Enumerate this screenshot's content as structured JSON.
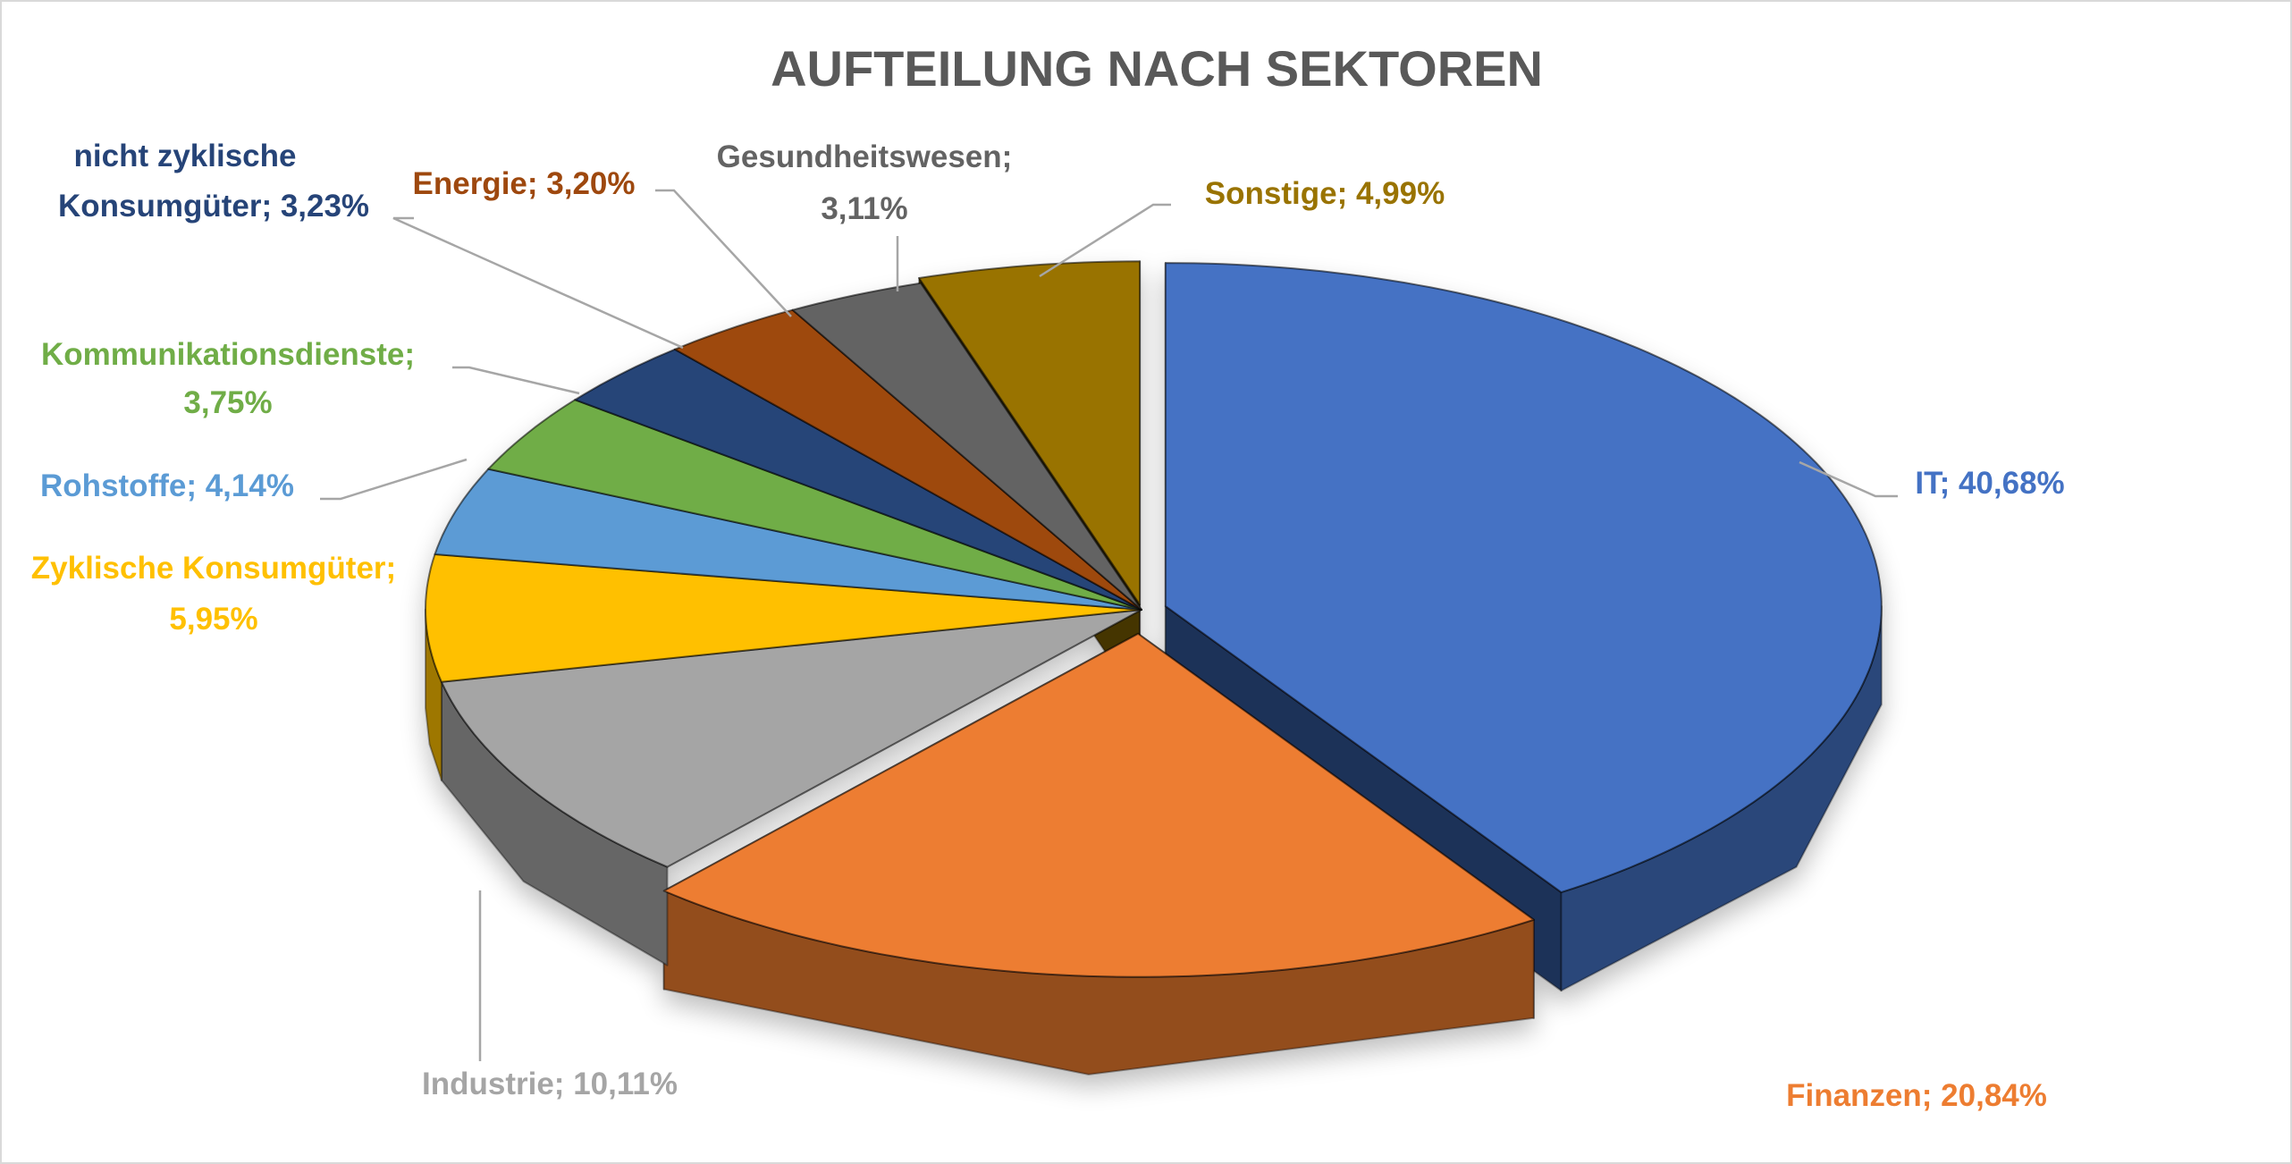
{
  "chart_data": {
    "type": "pie",
    "style": "3d-exploded",
    "title": "AUFTEILUNG NACH SEKTOREN",
    "unit": "%",
    "slices": [
      {
        "name": "IT",
        "value": 40.68,
        "label": "IT; 40,68%",
        "color": "#4472C4"
      },
      {
        "name": "Finanzen",
        "value": 20.84,
        "label": "Finanzen; 20,84%",
        "color": "#ED7D31"
      },
      {
        "name": "Industrie",
        "value": 10.11,
        "label": "Industrie; 10,11%",
        "color": "#A5A5A5"
      },
      {
        "name": "Zyklische Konsumgüter",
        "value": 5.95,
        "label_line1": "Zyklische Konsumgüter;",
        "label_line2": "5,95%",
        "color": "#FFC000"
      },
      {
        "name": "Rohstoffe",
        "value": 4.14,
        "label": "Rohstoffe; 4,14%",
        "color": "#5B9BD5"
      },
      {
        "name": "Kommunikationsdienste",
        "value": 3.75,
        "label_line1": "Kommunikationsdienste;",
        "label_line2": "3,75%",
        "color": "#70AD47"
      },
      {
        "name": "nicht zyklische Konsumgüter",
        "value": 3.23,
        "label_line1": "nicht zyklische",
        "label_line2": "Konsumgüter; 3,23%",
        "color": "#264478"
      },
      {
        "name": "Energie",
        "value": 3.2,
        "label": "Energie; 3,20%",
        "color": "#9E480E"
      },
      {
        "name": "Gesundheitswesen",
        "value": 3.11,
        "label_line1": "Gesundheitswesen;",
        "label_line2": "3,11%",
        "color": "#636363"
      },
      {
        "name": "Sonstige",
        "value": 4.99,
        "label": "Sonstige; 4,99%",
        "color": "#997300"
      }
    ],
    "legend": "none"
  }
}
